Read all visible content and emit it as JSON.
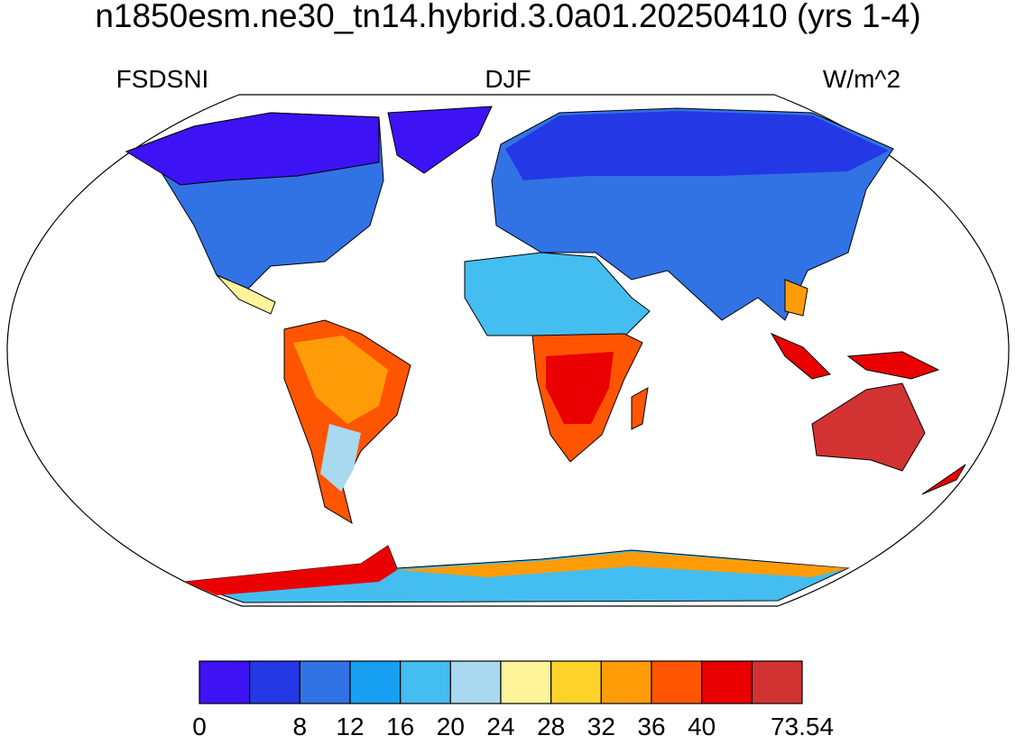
{
  "chart_data": {
    "type": "map",
    "title": "n1850esm.ne30_tn14.hybrid.3.0a01.20250410 (yrs 1-4)",
    "left_string": "FSDSNI",
    "center_string": "DJF",
    "right_string": "W/m^2",
    "colorbar": {
      "colors": [
        "#3d12f5",
        "#2438e6",
        "#3173e4",
        "#17a0f2",
        "#44bdf0",
        "#a8d9ef",
        "#fff49a",
        "#ffd22a",
        "#ff9c08",
        "#ff5500",
        "#ea0000",
        "#d33232"
      ],
      "boundaries": [
        0,
        null,
        8,
        12,
        16,
        20,
        24,
        28,
        32,
        36,
        40,
        null,
        73.54
      ]
    }
  }
}
